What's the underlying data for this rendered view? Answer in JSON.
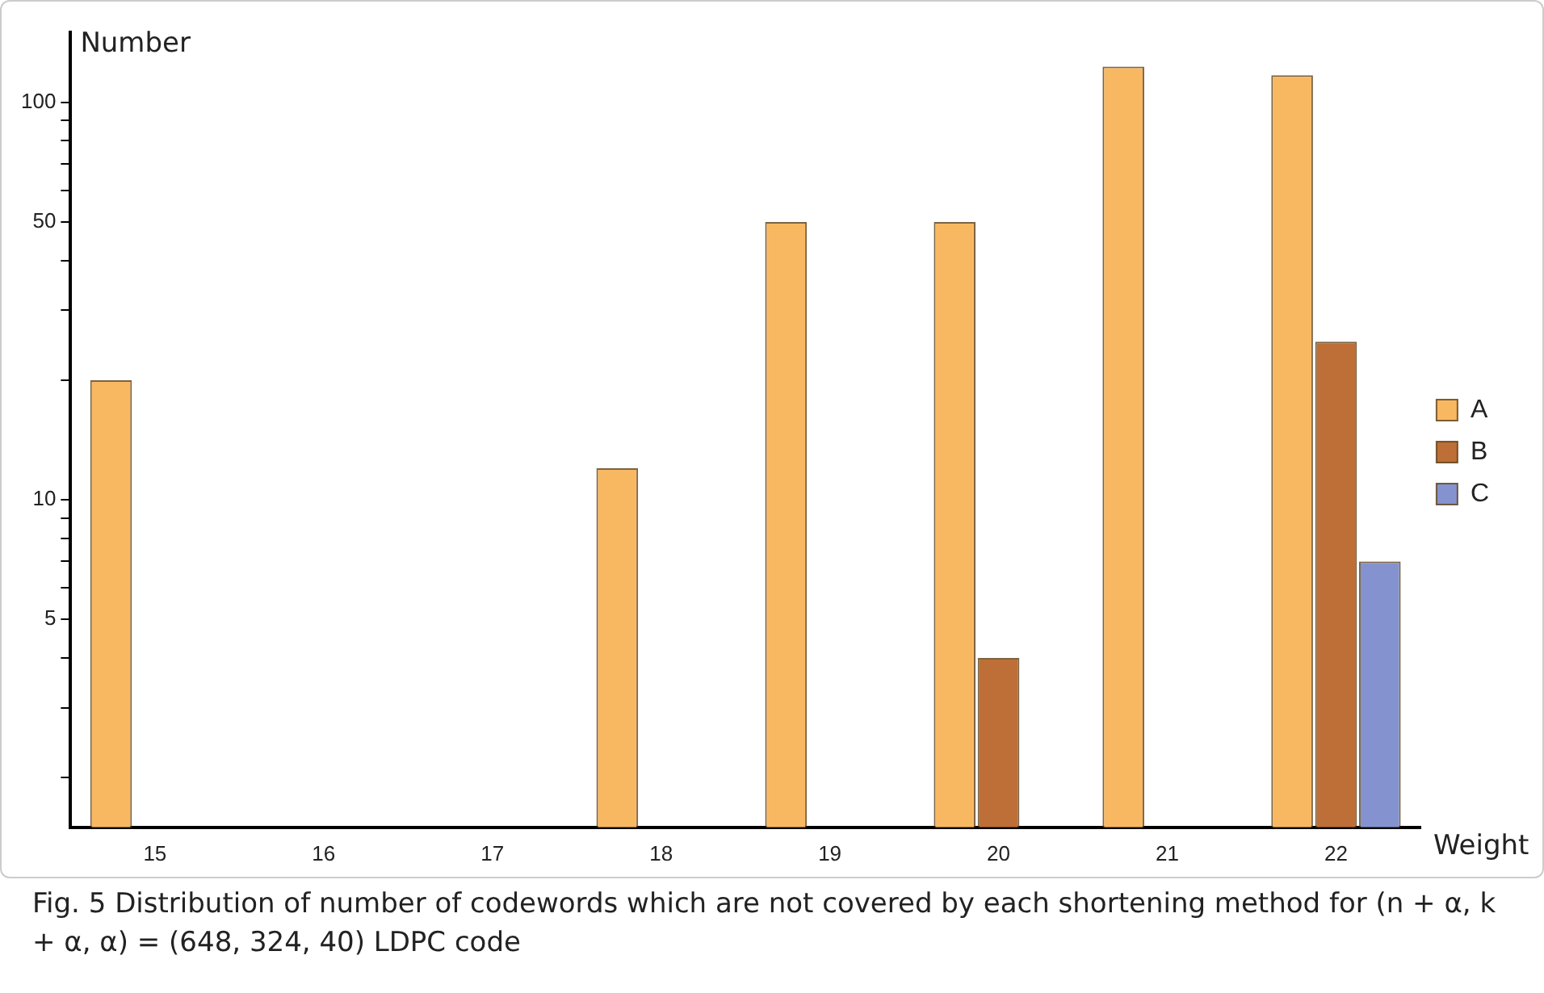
{
  "chart_data": {
    "type": "bar",
    "xlabel": "Weight",
    "ylabel": "Number",
    "categories": [
      "15",
      "16",
      "17",
      "18",
      "19",
      "20",
      "21",
      "22"
    ],
    "series": [
      {
        "name": "A",
        "color": "#f8b862",
        "values": [
          20,
          null,
          null,
          12,
          50,
          50,
          123,
          117
        ]
      },
      {
        "name": "B",
        "color": "#bd6f37",
        "values": [
          null,
          null,
          null,
          null,
          null,
          4,
          null,
          25
        ]
      },
      {
        "name": "C",
        "color": "#8493cf",
        "values": [
          null,
          null,
          null,
          null,
          null,
          null,
          null,
          7
        ]
      }
    ],
    "log": "y",
    "ylim": [
      1.5,
      150
    ],
    "yticks": [
      {
        "value": 2,
        "label": null
      },
      {
        "value": 3,
        "label": null
      },
      {
        "value": 4,
        "label": null
      },
      5,
      {
        "value": 6,
        "label": null
      },
      {
        "value": 7,
        "label": null
      },
      {
        "value": 8,
        "label": null
      },
      {
        "value": 9,
        "label": null
      },
      10,
      {
        "value": 20,
        "label": null
      },
      {
        "value": 30,
        "label": null
      },
      {
        "value": 40,
        "label": null
      },
      50,
      {
        "value": 60,
        "label": null
      },
      {
        "value": 70,
        "label": null
      },
      {
        "value": 80,
        "label": null
      },
      {
        "value": 90,
        "label": null
      },
      100
    ],
    "grid": false,
    "legend": "right",
    "annotations": [
      "Fig. 5  Distribution of number of codewords which are not covered by each shortening method for (n + α, k + α, α) = (648, 324, 40) LDPC code"
    ]
  }
}
